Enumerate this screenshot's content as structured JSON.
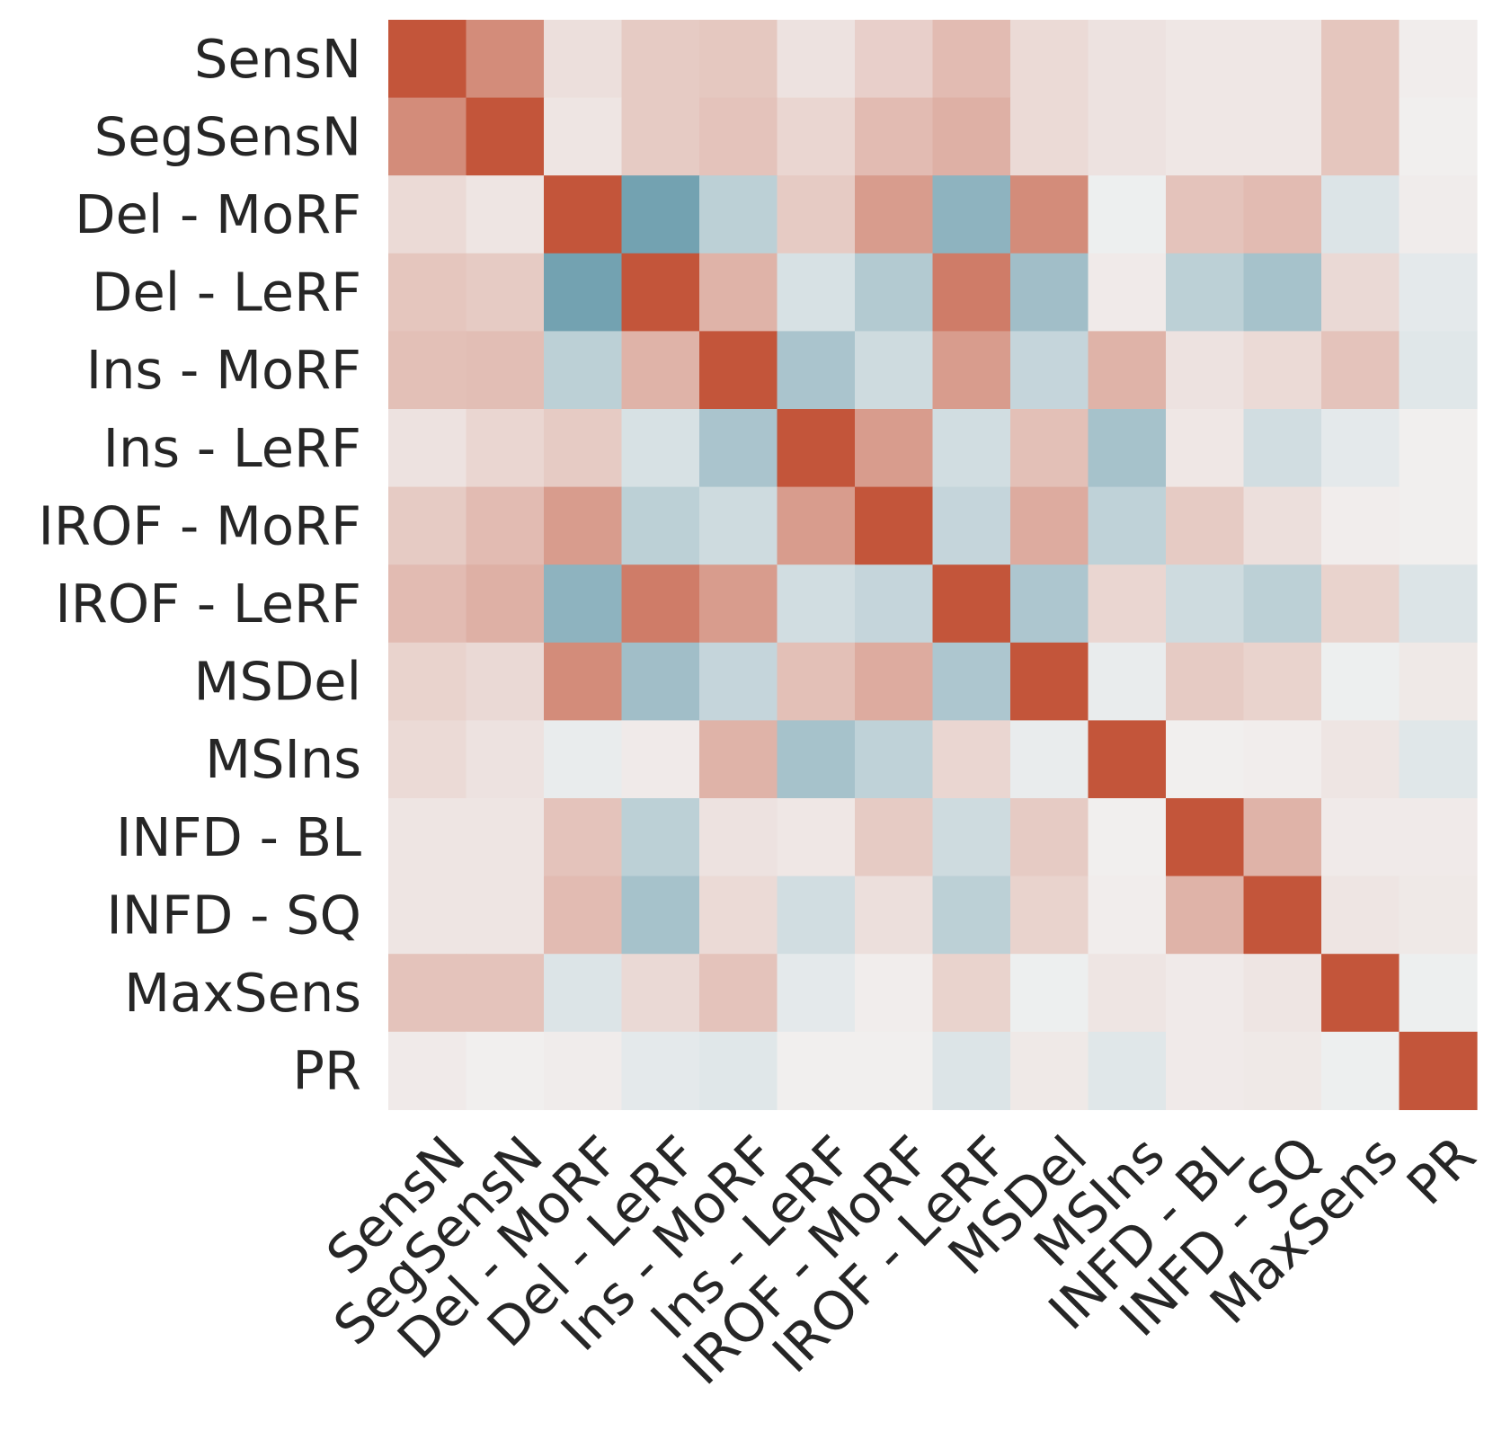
{
  "chart_data": {
    "type": "heatmap",
    "title": "",
    "xlabel": "",
    "ylabel": "",
    "labels": [
      "SensN",
      "SegSensN",
      "Del - MoRF",
      "Del - LeRF",
      "Ins - MoRF",
      "Ins - LeRF",
      "IROF - MoRF",
      "IROF - LeRF",
      "MSDel",
      "MSIns",
      "INFD - BL",
      "INFD - SQ",
      "MaxSens",
      "PR"
    ],
    "x_labels": [
      "SensN",
      "SegSensN",
      "Del - MoRF",
      "Del - LeRF",
      "Ins - MoRF",
      "Ins - LeRF",
      "IROF - MoRF",
      "IROF - LeRF",
      "MSDel",
      "MSIns",
      "INFD - BL",
      "INFD - SQ",
      "MaxSens",
      "PR"
    ],
    "y_labels": [
      "SensN",
      "SegSensN",
      "Del - MoRF",
      "Del - LeRF",
      "Ins - MoRF",
      "Ins - LeRF",
      "IROF - MoRF",
      "IROF - LeRF",
      "MSDel",
      "MSIns",
      "INFD - BL",
      "INFD - SQ",
      "MaxSens",
      "PR"
    ],
    "value_range": [
      -1,
      1
    ],
    "colormap": {
      "negative": "#3d7f95",
      "center": "#f2f2f2",
      "positive": "#c3553a"
    },
    "colorbar": false,
    "values": [
      [
        1.0,
        0.65,
        0.12,
        0.25,
        0.27,
        0.1,
        0.22,
        0.35,
        0.15,
        0.1,
        0.07,
        0.07,
        0.28,
        0.03
      ],
      [
        0.65,
        1.0,
        0.08,
        0.25,
        0.3,
        0.18,
        0.35,
        0.42,
        0.15,
        0.1,
        0.07,
        0.07,
        0.28,
        0.02
      ],
      [
        0.15,
        0.08,
        1.0,
        -0.7,
        -0.3,
        0.25,
        0.55,
        -0.55,
        0.65,
        -0.03,
        0.3,
        0.35,
        -0.12,
        0.04
      ],
      [
        0.28,
        0.25,
        -0.7,
        1.0,
        0.4,
        -0.15,
        -0.35,
        0.75,
        -0.45,
        0.05,
        -0.3,
        -0.42,
        0.16,
        -0.08
      ],
      [
        0.32,
        0.33,
        -0.3,
        0.4,
        1.0,
        -0.4,
        -0.2,
        0.55,
        -0.25,
        0.4,
        0.1,
        0.15,
        0.3,
        -0.1
      ],
      [
        0.1,
        0.18,
        0.25,
        -0.15,
        -0.4,
        1.0,
        0.55,
        -0.18,
        0.32,
        -0.42,
        0.07,
        -0.18,
        -0.08,
        0.02
      ],
      [
        0.25,
        0.35,
        0.55,
        -0.3,
        -0.2,
        0.55,
        1.0,
        -0.25,
        0.45,
        -0.28,
        0.25,
        0.12,
        0.03,
        0.02
      ],
      [
        0.35,
        0.42,
        -0.55,
        0.75,
        0.55,
        -0.18,
        -0.25,
        1.0,
        -0.38,
        0.18,
        -0.2,
        -0.3,
        0.2,
        -0.12
      ],
      [
        0.2,
        0.16,
        0.65,
        -0.45,
        -0.25,
        0.32,
        0.45,
        -0.38,
        1.0,
        -0.05,
        0.25,
        0.2,
        -0.03,
        0.06
      ],
      [
        0.15,
        0.1,
        -0.05,
        0.05,
        0.4,
        -0.42,
        -0.28,
        0.18,
        -0.05,
        1.0,
        0.02,
        0.03,
        0.08,
        -0.1
      ],
      [
        0.08,
        0.08,
        0.3,
        -0.3,
        0.1,
        0.07,
        0.25,
        -0.2,
        0.25,
        0.02,
        1.0,
        0.4,
        0.05,
        0.05
      ],
      [
        0.08,
        0.08,
        0.35,
        -0.42,
        0.15,
        -0.18,
        0.12,
        -0.3,
        0.2,
        0.03,
        0.4,
        1.0,
        0.08,
        0.06
      ],
      [
        0.3,
        0.3,
        -0.12,
        0.16,
        0.3,
        -0.08,
        0.03,
        0.2,
        -0.03,
        0.08,
        0.05,
        0.08,
        1.0,
        -0.03
      ],
      [
        0.05,
        0.02,
        0.04,
        -0.08,
        -0.1,
        0.02,
        0.02,
        -0.12,
        0.06,
        -0.1,
        0.05,
        0.06,
        -0.03,
        1.0
      ]
    ]
  }
}
